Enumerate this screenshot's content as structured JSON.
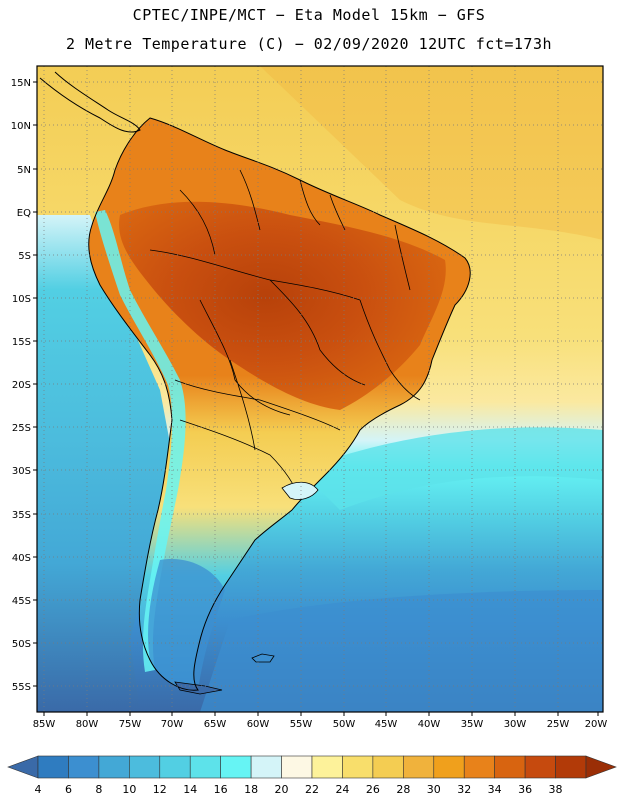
{
  "header": {
    "title_line1": "CPTEC/INPE/MCT −  Eta Model 15km − GFS",
    "title_line2": "2 Metre Temperature (C) − 02/09/2020 12UTC fct=173h"
  },
  "map": {
    "lat_labels": [
      "15N",
      "10N",
      "5N",
      "EQ",
      "5S",
      "10S",
      "15S",
      "20S",
      "25S",
      "30S",
      "35S",
      "40S",
      "45S",
      "50S",
      "55S"
    ],
    "lon_labels": [
      "85W",
      "80W",
      "75W",
      "70W",
      "65W",
      "60W",
      "55W",
      "50W",
      "45W",
      "40W",
      "35W",
      "30W",
      "25W",
      "20W"
    ]
  },
  "legend": {
    "ticks": [
      "4",
      "6",
      "8",
      "10",
      "12",
      "14",
      "16",
      "18",
      "20",
      "22",
      "24",
      "26",
      "28",
      "30",
      "32",
      "34",
      "36",
      "38"
    ],
    "colors": [
      "#3a6aa8",
      "#2f7cc0",
      "#3c8fd0",
      "#43a8d6",
      "#4cbcdd",
      "#52cfe3",
      "#5de2ea",
      "#66f4f4",
      "#d4f4f8",
      "#fdf8e4",
      "#fdf29a",
      "#f8de6b",
      "#f4cd52",
      "#f0b23c",
      "#f0a01c",
      "#e8821a",
      "#d86410",
      "#c64a0e",
      "#b23a08",
      "#9a2e06"
    ]
  }
}
